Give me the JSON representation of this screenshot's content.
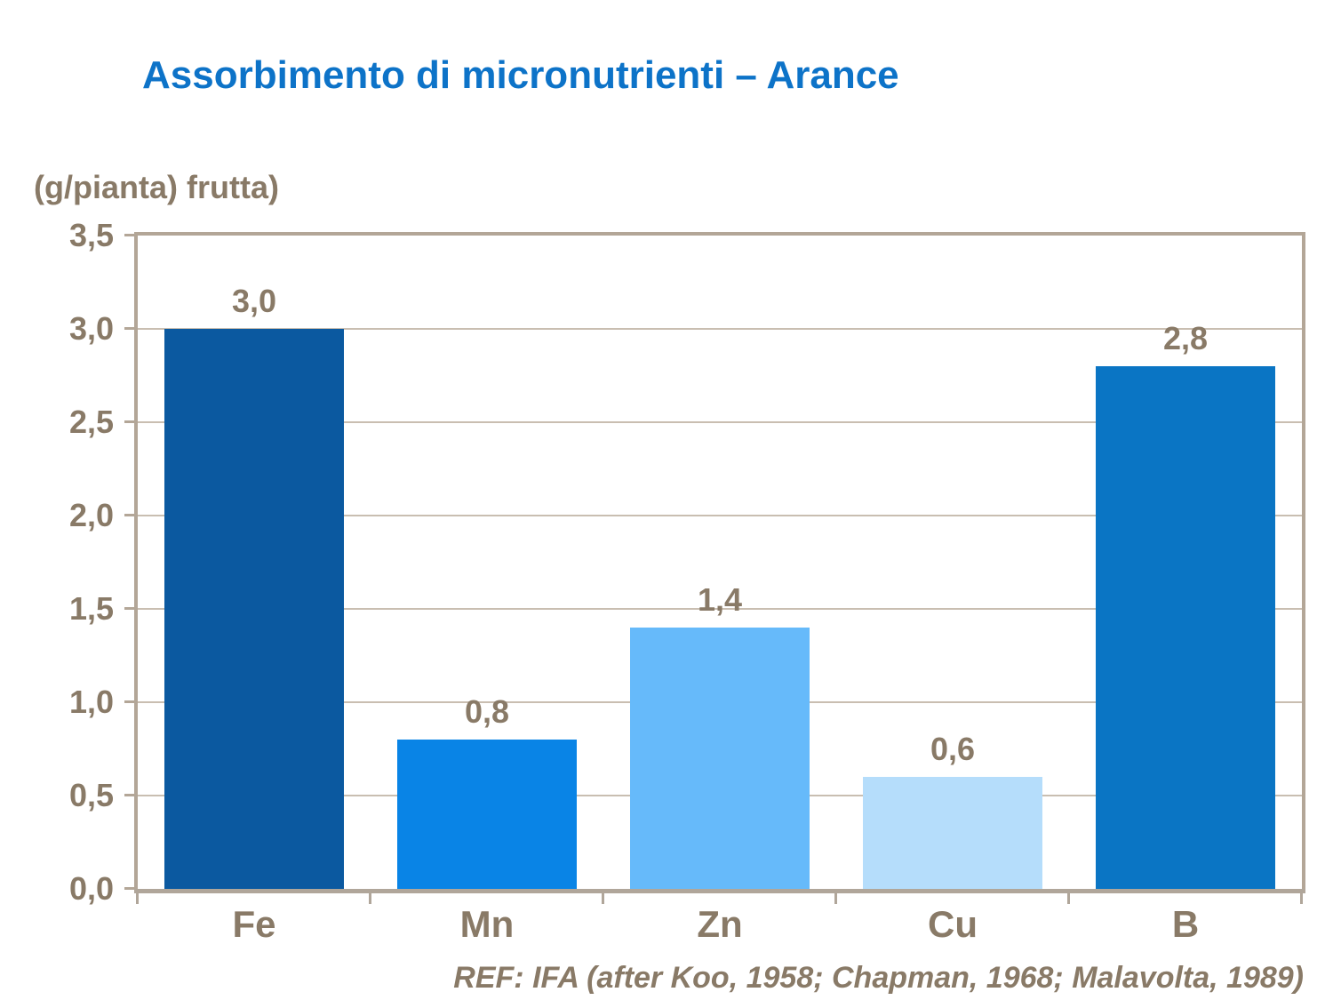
{
  "chart_data": {
    "type": "bar",
    "title": "Assorbimento di micronutrienti – Arance",
    "ylabel": "(g/pianta) frutta)",
    "xlabel": "",
    "categories": [
      "Fe",
      "Mn",
      "Zn",
      "Cu",
      "B"
    ],
    "values": [
      3.0,
      0.8,
      1.4,
      0.6,
      2.8
    ],
    "value_labels": [
      "3,0",
      "0,8",
      "1,4",
      "0,6",
      "2,8"
    ],
    "bar_colors": [
      "#0b59a0",
      "#0984e6",
      "#66bafa",
      "#b5ddfb",
      "#0a75c4"
    ],
    "ylim": [
      0,
      3.5
    ],
    "ytick_values": [
      3.5,
      3.0,
      2.5,
      2.0,
      1.5,
      1.0,
      0.5,
      0.0
    ],
    "ytick_labels": [
      "3,5",
      "3,0",
      "2,5",
      "2,0",
      "1,5",
      "1,0",
      "0,5",
      "0,0"
    ],
    "grid": true,
    "legend_position": "none",
    "source_note": "REF: IFA (after Koo, 1958; Chapman, 1968; Malavolta, 1989)"
  },
  "colors": {
    "title_blue": "#0d73c8",
    "axis_text": "#897a67",
    "grid_line": "#c9beb1",
    "plot_border": "#b3a697",
    "axis_line": "#b0a69a",
    "background": "#ffffff"
  }
}
